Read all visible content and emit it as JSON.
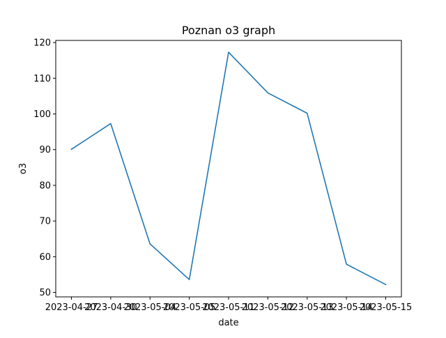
{
  "chart_data": {
    "type": "line",
    "title": "Poznan o3 graph",
    "xlabel": "date",
    "ylabel": "o3",
    "x": [
      "2023-04-27",
      "2023-04-30",
      "2023-05-04",
      "2023-05-05",
      "2023-05-11",
      "2023-05-12",
      "2023-05-13",
      "2023-05-14",
      "2023-05-15"
    ],
    "series": [
      {
        "values": [
          90.1,
          97.3,
          63.6,
          53.6,
          117.3,
          105.9,
          100.2,
          57.9,
          52.2
        ],
        "color": "#1f77b4"
      }
    ],
    "ylim": [
      48.75,
      120.6
    ],
    "yticks": [
      50,
      60,
      70,
      80,
      90,
      100,
      110,
      120
    ],
    "grid": false,
    "legend": "none"
  }
}
